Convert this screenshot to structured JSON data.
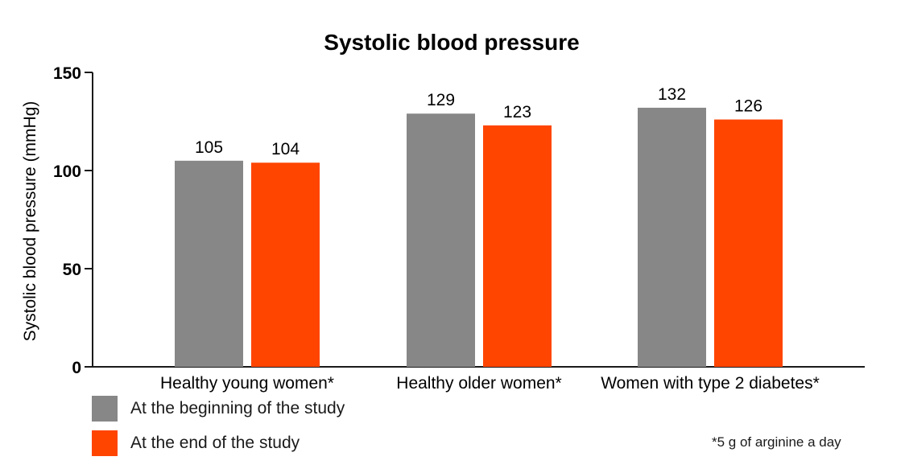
{
  "chart_data": {
    "type": "bar",
    "title": "Systolic blood pressure",
    "xlabel": "",
    "ylabel": "Systolic blood pressure (mmHg)",
    "ylim": [
      0,
      150
    ],
    "yticks": [
      0,
      50,
      100,
      150
    ],
    "categories": [
      "Healthy young women*",
      "Healthy older women*",
      "Women with type 2 diabetes*"
    ],
    "series": [
      {
        "name": "At the beginning of the study",
        "color": "#878787",
        "values": [
          105,
          129,
          132
        ]
      },
      {
        "name": "At the end of the study",
        "color": "#ff4500",
        "values": [
          104,
          123,
          126
        ]
      }
    ],
    "legend_position": "bottom-left",
    "grid": false
  },
  "footnote": "*5 g of arginine a day"
}
